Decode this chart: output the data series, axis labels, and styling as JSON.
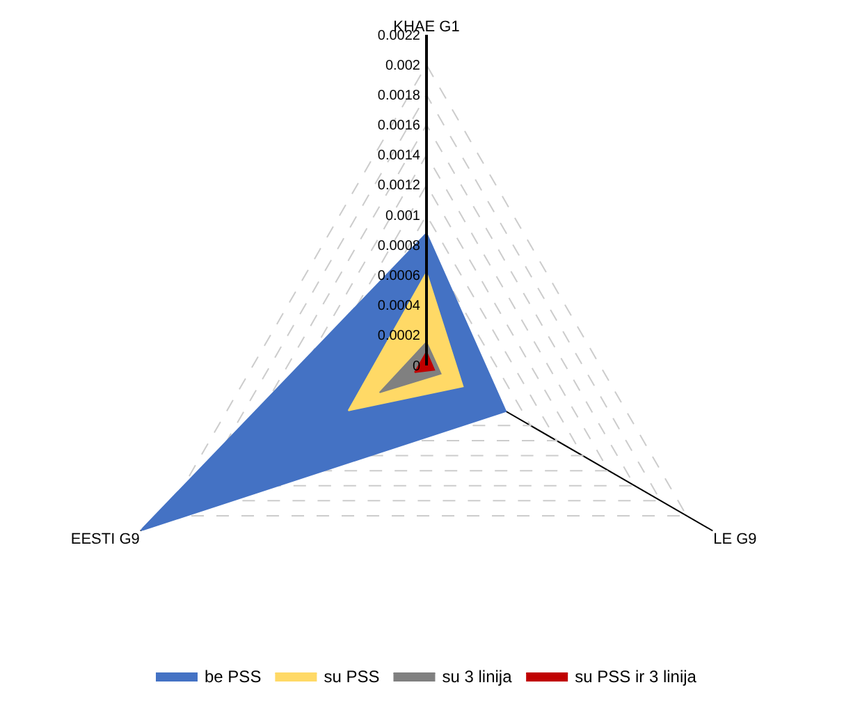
{
  "chart_data": {
    "type": "radar",
    "categories": [
      "KHAE G1",
      "LE G9",
      "EESTI G9"
    ],
    "series": [
      {
        "name": "be PSS",
        "color": "#4472c4",
        "values": [
          0.00088,
          0.00061,
          0.0022
        ]
      },
      {
        "name": "su PSS",
        "color": "#ffd966",
        "values": [
          0.00062,
          0.00028,
          0.0006
        ]
      },
      {
        "name": "su 3 linija",
        "color": "#808080",
        "values": [
          0.000155,
          0.00011,
          0.00036
        ]
      },
      {
        "name": "su PSS ir 3 linija",
        "color": "#c00000",
        "values": [
          9e-05,
          6e-05,
          9e-05
        ]
      }
    ],
    "ylim": [
      0,
      0.0022
    ],
    "yticks": [
      0,
      0.0002,
      0.0004,
      0.0006,
      0.0008,
      0.001,
      0.0012,
      0.0014,
      0.0016,
      0.0018,
      0.002,
      0.0022
    ],
    "grid": true,
    "legend": "bottom",
    "marker": "none"
  }
}
